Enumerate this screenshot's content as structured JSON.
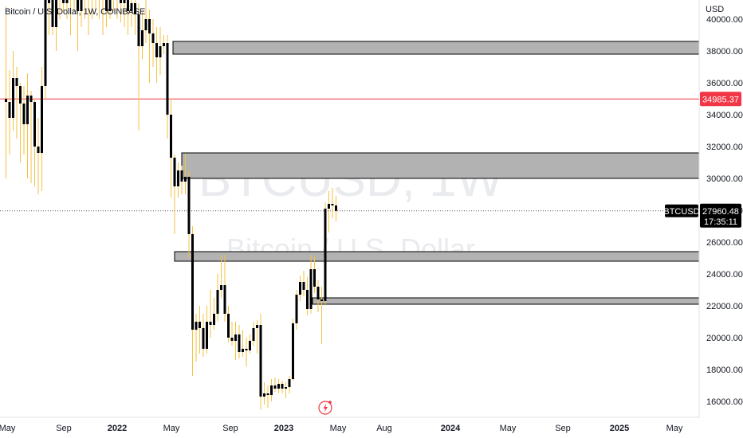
{
  "legend": "Bitcoin / U.S. Dollar, 1W, COINBASE",
  "currency": "USD",
  "watermark": {
    "line1": "BTCUSD, 1W",
    "line2": "Bitcoin / U.S. Dollar"
  },
  "y_ticks": [
    "16000.00",
    "18000.00",
    "20000.00",
    "22000.00",
    "24000.00",
    "26000.00",
    "28000.00",
    "30000.00",
    "32000.00",
    "34000.00",
    "36000.00",
    "38000.00",
    "40000.00"
  ],
  "x_ticks": [
    {
      "label": "May",
      "bold": false
    },
    {
      "label": "Sep",
      "bold": false
    },
    {
      "label": "2022",
      "bold": true
    },
    {
      "label": "May",
      "bold": false
    },
    {
      "label": "Sep",
      "bold": false
    },
    {
      "label": "2023",
      "bold": true
    },
    {
      "label": "May",
      "bold": false
    },
    {
      "label": "Aug",
      "bold": false
    },
    {
      "label": "2024",
      "bold": true
    },
    {
      "label": "May",
      "bold": false
    },
    {
      "label": "Sep",
      "bold": false
    },
    {
      "label": "2025",
      "bold": true
    },
    {
      "label": "May",
      "bold": false
    }
  ],
  "price_tags": {
    "red_line": "34985.37",
    "symbol": "BTCUSD",
    "last_price": "27960.48",
    "countdown": "17:35:11"
  },
  "colors": {
    "up": "#000000",
    "down": "#000000",
    "wick": "#f5c242",
    "zone": "#b2b2b2",
    "red": "#f23645"
  },
  "chart_data": {
    "type": "candlestick",
    "title": "Bitcoin / U.S. Dollar, 1W, COINBASE",
    "ylabel": "USD",
    "ylim": [
      15300,
      40800
    ],
    "reference_line": 34985.37,
    "last_price": 27960.48,
    "zones": [
      {
        "from": 37800,
        "to": 38600
      },
      {
        "from": 30000,
        "to": 31600
      },
      {
        "from": 24800,
        "to": 25400
      },
      {
        "from": 22100,
        "to": 22500
      }
    ],
    "candles": [
      [
        35000,
        34800,
        40800,
        30000
      ],
      [
        34800,
        33800,
        36800,
        31500
      ],
      [
        33800,
        36300,
        38000,
        33000
      ],
      [
        36300,
        35800,
        37000,
        32500
      ],
      [
        35800,
        34700,
        36000,
        31000
      ],
      [
        34700,
        33400,
        35800,
        31500
      ],
      [
        33400,
        35200,
        36600,
        30000
      ],
      [
        35200,
        34800,
        35500,
        29700
      ],
      [
        34800,
        32000,
        35000,
        29500
      ],
      [
        32000,
        31600,
        33800,
        29000
      ],
      [
        31600,
        35800,
        37000,
        29200
      ],
      [
        35800,
        41200,
        42600,
        35000
      ],
      [
        41000,
        42000,
        42600,
        39000
      ],
      [
        42000,
        39500,
        43000,
        39000
      ],
      [
        39500,
        41500,
        43100,
        38000
      ],
      [
        41500,
        42300,
        43000,
        40000
      ],
      [
        42300,
        41000,
        43200,
        40500
      ],
      [
        41000,
        42200,
        43500,
        40000
      ],
      [
        42200,
        41800,
        43000,
        39000
      ],
      [
        41800,
        42500,
        43500,
        40500
      ],
      [
        42500,
        40500,
        43000,
        38000
      ],
      [
        40500,
        41500,
        44000,
        39500
      ],
      [
        41500,
        42800,
        44500,
        40000
      ],
      [
        42800,
        42000,
        43500,
        39000
      ],
      [
        42000,
        41800,
        43000,
        40000
      ],
      [
        41800,
        42200,
        43000,
        40500
      ],
      [
        42200,
        41500,
        43000,
        40000
      ],
      [
        41500,
        42000,
        42800,
        39000
      ],
      [
        42000,
        40500,
        42500,
        39500
      ],
      [
        40500,
        41500,
        43000,
        40000
      ],
      [
        41500,
        43000,
        44500,
        40500
      ],
      [
        43000,
        42500,
        44500,
        40000
      ],
      [
        42500,
        41000,
        43500,
        39800
      ],
      [
        41000,
        41800,
        42500,
        39500
      ],
      [
        41800,
        40500,
        42500,
        39000
      ],
      [
        40500,
        41000,
        42000,
        39500
      ],
      [
        41000,
        40300,
        41500,
        39000
      ],
      [
        40300,
        38300,
        41000,
        33000
      ],
      [
        38300,
        39300,
        40500,
        37500
      ],
      [
        39300,
        40000,
        41500,
        38500
      ],
      [
        40000,
        39100,
        40600,
        36000
      ],
      [
        39100,
        38500,
        40000,
        37000
      ],
      [
        38500,
        37600,
        39500,
        36000
      ],
      [
        37600,
        38300,
        39500,
        36500
      ],
      [
        38300,
        38500,
        39000,
        37800
      ],
      [
        38500,
        34000,
        39000,
        32500
      ],
      [
        34000,
        31300,
        35000,
        28800
      ],
      [
        31300,
        29500,
        31500,
        26500
      ],
      [
        29500,
        30500,
        31000,
        28800
      ],
      [
        30500,
        29800,
        30800,
        29000
      ],
      [
        29800,
        30100,
        31500,
        29000
      ],
      [
        30100,
        26500,
        30500,
        25000
      ],
      [
        26500,
        20500,
        27000,
        17600
      ],
      [
        20500,
        21000,
        21500,
        18500
      ],
      [
        21000,
        20600,
        22000,
        19000
      ],
      [
        20600,
        19300,
        21500,
        18800
      ],
      [
        19300,
        21000,
        22000,
        19000
      ],
      [
        21000,
        20800,
        23000,
        20000
      ],
      [
        20800,
        21500,
        22500,
        20500
      ],
      [
        21500,
        23000,
        24000,
        21000
      ],
      [
        23000,
        23300,
        25200,
        22500
      ],
      [
        23300,
        21500,
        25200,
        21000
      ],
      [
        21500,
        20000,
        22000,
        19700
      ],
      [
        20000,
        19800,
        21000,
        19500
      ],
      [
        19800,
        20200,
        21000,
        18600
      ],
      [
        20200,
        19100,
        20800,
        18700
      ],
      [
        19100,
        19300,
        20500,
        18800
      ],
      [
        19300,
        19200,
        20000,
        18200
      ],
      [
        19200,
        19800,
        20200,
        19000
      ],
      [
        19800,
        20600,
        21000,
        19500
      ],
      [
        20600,
        20800,
        21100,
        19000
      ],
      [
        20800,
        16300,
        21500,
        15500
      ],
      [
        16300,
        16500,
        17200,
        15800
      ],
      [
        16500,
        16400,
        17000,
        15600
      ],
      [
        16400,
        17000,
        17400,
        16000
      ],
      [
        17000,
        16800,
        17500,
        16600
      ],
      [
        16800,
        17100,
        17400,
        16500
      ],
      [
        17100,
        16800,
        17300,
        16500
      ],
      [
        16800,
        16900,
        17200,
        16200
      ],
      [
        16900,
        17400,
        17600,
        16500
      ],
      [
        17400,
        20900,
        21200,
        17300
      ],
      [
        20900,
        22700,
        23000,
        20500
      ],
      [
        22700,
        23500,
        23900,
        22300
      ],
      [
        23500,
        23000,
        24200,
        22600
      ],
      [
        23000,
        21800,
        23800,
        21400
      ],
      [
        21800,
        24300,
        25200,
        21500
      ],
      [
        24300,
        23200,
        25100,
        22800
      ],
      [
        23200,
        22400,
        23600,
        21600
      ],
      [
        22400,
        22300,
        23200,
        19600
      ],
      [
        22300,
        28100,
        28500,
        22000
      ],
      [
        28100,
        28400,
        29200,
        26600
      ],
      [
        28400,
        28300,
        29400,
        27500
      ],
      [
        28300,
        27960,
        28900,
        27300
      ]
    ]
  }
}
